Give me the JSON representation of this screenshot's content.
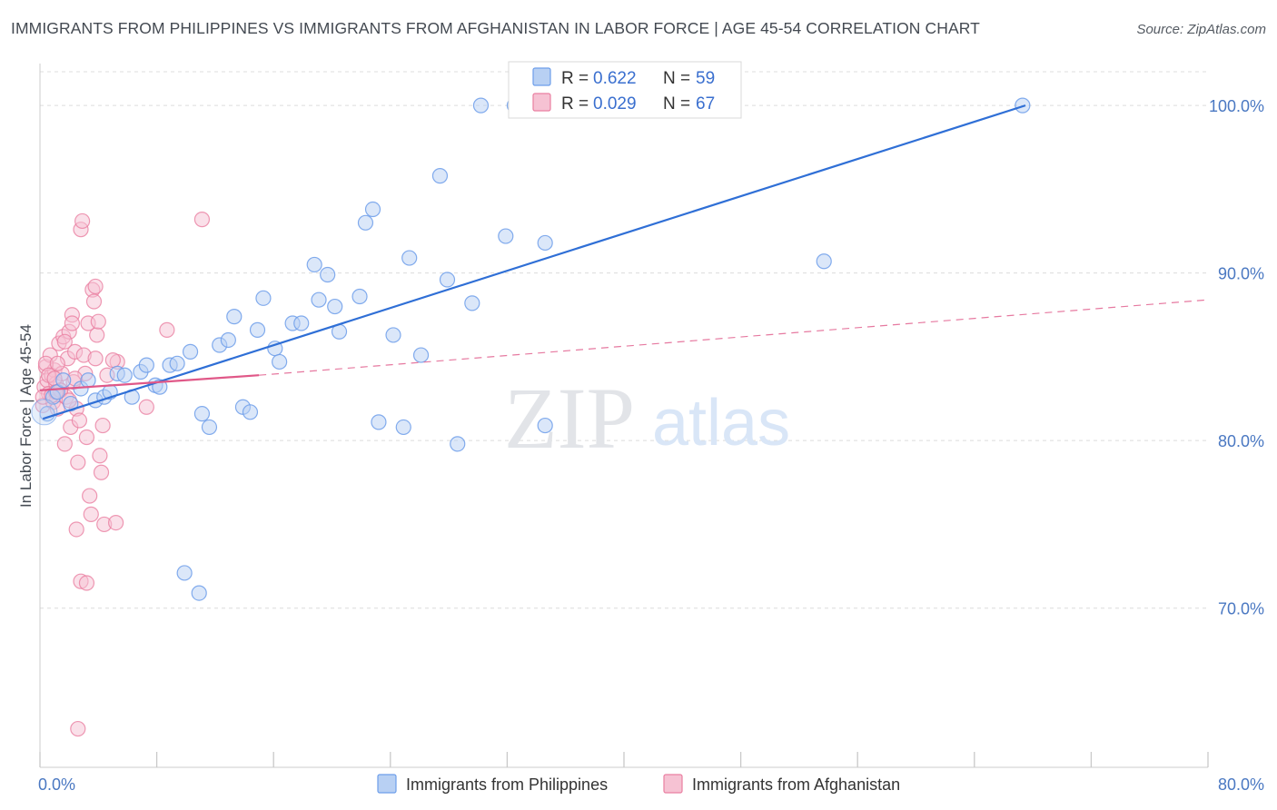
{
  "header": {
    "title": "IMMIGRANTS FROM PHILIPPINES VS IMMIGRANTS FROM AFGHANISTAN IN LABOR FORCE | AGE 45-54 CORRELATION CHART",
    "source": "Source: ZipAtlas.com"
  },
  "watermark": {
    "zip": "ZIP",
    "atlas": "atlas"
  },
  "colors": {
    "philippines": "#6d9eea",
    "philippines_fill": "#b8d0f3",
    "philippines_line": "#2f6fd6",
    "afghanistan": "#ea7fa1",
    "afghanistan_fill": "#f6c2d3",
    "afghanistan_line": "#e05888",
    "axis_text": "#4a78c2"
  },
  "legend": {
    "r_label": "R =",
    "n_label": "N =",
    "entries": [
      {
        "r": "0.622",
        "n": "59"
      },
      {
        "r": "0.029",
        "n": "67"
      }
    ]
  },
  "chart_data": {
    "type": "scatter",
    "title": "IMMIGRANTS FROM PHILIPPINES VS IMMIGRANTS FROM AFGHANISTAN IN LABOR FORCE | AGE 45-54 CORRELATION CHART",
    "xlabel": "",
    "ylabel": "In Labor Force | Age 45-54",
    "xlim": [
      0,
      80
    ],
    "ylim": [
      60.5,
      102.5
    ],
    "x_tick_labels": [
      "0.0%",
      "80.0%"
    ],
    "y_ticks": [
      70,
      80,
      90,
      100
    ],
    "y_tick_labels": [
      "70.0%",
      "80.0%",
      "90.0%",
      "100.0%"
    ],
    "grid": true,
    "legend_position": "top-center",
    "series": [
      {
        "name": "Immigrants from Philippines",
        "r": 0.622,
        "n": 59,
        "trend": {
          "x": [
            0.2,
            67.5
          ],
          "y": [
            81.3,
            100.0
          ],
          "style": "solid"
        },
        "points": [
          [
            0.5,
            81.6
          ],
          [
            0.9,
            82.6
          ],
          [
            1.2,
            82.9
          ],
          [
            1.6,
            83.6
          ],
          [
            2.1,
            82.2
          ],
          [
            2.8,
            83.1
          ],
          [
            3.3,
            83.6
          ],
          [
            3.8,
            82.4
          ],
          [
            4.4,
            82.6
          ],
          [
            4.8,
            82.9
          ],
          [
            5.3,
            84.0
          ],
          [
            5.8,
            83.9
          ],
          [
            6.3,
            82.6
          ],
          [
            6.9,
            84.1
          ],
          [
            7.3,
            84.5
          ],
          [
            7.9,
            83.3
          ],
          [
            8.2,
            83.2
          ],
          [
            8.9,
            84.5
          ],
          [
            9.4,
            84.6
          ],
          [
            10.3,
            85.3
          ],
          [
            11.1,
            81.6
          ],
          [
            11.6,
            80.8
          ],
          [
            12.3,
            85.7
          ],
          [
            12.9,
            86.0
          ],
          [
            13.3,
            87.4
          ],
          [
            13.9,
            82.0
          ],
          [
            14.4,
            81.7
          ],
          [
            14.9,
            86.6
          ],
          [
            15.3,
            88.5
          ],
          [
            16.1,
            85.5
          ],
          [
            16.4,
            84.7
          ],
          [
            17.3,
            87.0
          ],
          [
            17.9,
            87.0
          ],
          [
            18.8,
            90.5
          ],
          [
            19.1,
            88.4
          ],
          [
            19.7,
            89.9
          ],
          [
            20.2,
            88.0
          ],
          [
            20.5,
            86.5
          ],
          [
            21.9,
            88.6
          ],
          [
            22.3,
            93.0
          ],
          [
            22.8,
            93.8
          ],
          [
            23.2,
            81.1
          ],
          [
            24.2,
            86.3
          ],
          [
            24.9,
            80.8
          ],
          [
            25.3,
            90.9
          ],
          [
            26.1,
            85.1
          ],
          [
            27.4,
            95.8
          ],
          [
            27.9,
            89.6
          ],
          [
            28.6,
            79.8
          ],
          [
            29.6,
            88.2
          ],
          [
            30.2,
            100.0
          ],
          [
            31.9,
            92.2
          ],
          [
            32.5,
            100.0
          ],
          [
            34.6,
            91.8
          ],
          [
            34.6,
            80.9
          ],
          [
            53.7,
            90.7
          ],
          [
            67.3,
            100.0
          ],
          [
            9.9,
            72.1
          ],
          [
            10.9,
            70.9
          ]
        ]
      },
      {
        "name": "Immigrants from Afghanistan",
        "r": 0.029,
        "n": 67,
        "trend_solid": {
          "x": [
            0.0,
            15.0
          ],
          "y": [
            83.0,
            83.9
          ]
        },
        "trend_dashed": {
          "x": [
            15.0,
            80.0
          ],
          "y": [
            83.9,
            88.4
          ]
        },
        "points": [
          [
            0.2,
            82.1
          ],
          [
            0.3,
            83.2
          ],
          [
            0.4,
            84.4
          ],
          [
            0.5,
            83.6
          ],
          [
            0.6,
            82.8
          ],
          [
            0.7,
            85.1
          ],
          [
            0.8,
            83.9
          ],
          [
            0.9,
            82.3
          ],
          [
            1.0,
            84.2
          ],
          [
            1.1,
            83.4
          ],
          [
            1.2,
            81.9
          ],
          [
            1.3,
            85.8
          ],
          [
            1.4,
            83.0
          ],
          [
            1.5,
            84.0
          ],
          [
            1.6,
            86.2
          ],
          [
            1.7,
            79.8
          ],
          [
            1.8,
            82.6
          ],
          [
            1.9,
            84.9
          ],
          [
            2.0,
            86.5
          ],
          [
            2.1,
            80.8
          ],
          [
            2.2,
            87.5
          ],
          [
            2.3,
            83.5
          ],
          [
            2.4,
            85.3
          ],
          [
            2.5,
            81.9
          ],
          [
            2.6,
            78.7
          ],
          [
            2.7,
            81.2
          ],
          [
            2.8,
            92.6
          ],
          [
            2.9,
            93.1
          ],
          [
            3.0,
            85.1
          ],
          [
            3.1,
            84.0
          ],
          [
            3.2,
            80.2
          ],
          [
            3.3,
            87.0
          ],
          [
            3.4,
            76.7
          ],
          [
            3.5,
            75.6
          ],
          [
            3.6,
            89.0
          ],
          [
            3.7,
            88.3
          ],
          [
            3.8,
            84.9
          ],
          [
            3.9,
            86.3
          ],
          [
            4.0,
            87.1
          ],
          [
            4.1,
            79.1
          ],
          [
            4.2,
            78.1
          ],
          [
            4.3,
            80.9
          ],
          [
            4.4,
            75.0
          ],
          [
            5.2,
            75.1
          ],
          [
            5.3,
            84.7
          ],
          [
            7.3,
            82.0
          ],
          [
            8.7,
            86.6
          ],
          [
            11.1,
            93.2
          ],
          [
            2.8,
            71.6
          ],
          [
            3.2,
            71.5
          ],
          [
            2.6,
            62.8
          ],
          [
            2.5,
            74.7
          ],
          [
            0.2,
            82.6
          ],
          [
            0.4,
            84.6
          ],
          [
            0.6,
            83.9
          ],
          [
            0.8,
            82.7
          ],
          [
            1.0,
            83.7
          ],
          [
            1.2,
            84.6
          ],
          [
            1.4,
            83.0
          ],
          [
            1.7,
            85.9
          ],
          [
            2.0,
            82.4
          ],
          [
            2.2,
            87.0
          ],
          [
            2.4,
            83.7
          ],
          [
            3.8,
            89.2
          ],
          [
            4.6,
            83.9
          ],
          [
            5.0,
            84.8
          ],
          [
            1.1,
            82.9
          ]
        ]
      }
    ]
  }
}
